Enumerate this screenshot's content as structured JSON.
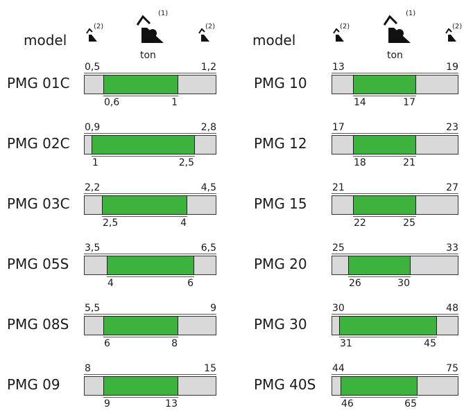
{
  "header": {
    "model_label": "model",
    "unit_label": "ton",
    "left_icon_note": "(2)",
    "center_icon_note": "(1)",
    "right_icon_note": "(2)",
    "left_icon": "crane-small-icon",
    "center_icon": "crane-large-icon",
    "right_icon": "crane-small-icon"
  },
  "colors": {
    "fill": "#3cb33c",
    "track": "#d9d9d9"
  },
  "columns": [
    {
      "rows": [
        {
          "model": "PMG 01C",
          "min": "0,5",
          "max": "1,2",
          "low": "0,6",
          "high": "1",
          "range": [
            0.5,
            1.2
          ],
          "band": [
            0.6,
            1
          ]
        },
        {
          "model": "PMG 02C",
          "min": "0,9",
          "max": "2,8",
          "low": "1",
          "high": "2,5",
          "range": [
            0.9,
            2.8
          ],
          "band": [
            1,
            2.5
          ]
        },
        {
          "model": "PMG 03C",
          "min": "2,2",
          "max": "4,5",
          "low": "2,5",
          "high": "4",
          "range": [
            2.2,
            4.5
          ],
          "band": [
            2.5,
            4
          ]
        },
        {
          "model": "PMG 05S",
          "min": "3,5",
          "max": "6,5",
          "low": "4",
          "high": "6",
          "range": [
            3.5,
            6.5
          ],
          "band": [
            4,
            6
          ]
        },
        {
          "model": "PMG 08S",
          "min": "5,5",
          "max": "9",
          "low": "6",
          "high": "8",
          "range": [
            5.5,
            9
          ],
          "band": [
            6,
            8
          ]
        },
        {
          "model": "PMG 09",
          "min": "8",
          "max": "15",
          "low": "9",
          "high": "13",
          "range": [
            8,
            15
          ],
          "band": [
            9,
            13
          ]
        }
      ]
    },
    {
      "rows": [
        {
          "model": "PMG 10",
          "min": "13",
          "max": "19",
          "low": "14",
          "high": "17",
          "range": [
            13,
            19
          ],
          "band": [
            14,
            17
          ]
        },
        {
          "model": "PMG 12",
          "min": "17",
          "max": "23",
          "low": "18",
          "high": "21",
          "range": [
            17,
            23
          ],
          "band": [
            18,
            21
          ]
        },
        {
          "model": "PMG 15",
          "min": "21",
          "max": "27",
          "low": "22",
          "high": "25",
          "range": [
            21,
            27
          ],
          "band": [
            22,
            25
          ]
        },
        {
          "model": "PMG 20",
          "min": "25",
          "max": "33",
          "low": "26",
          "high": "30",
          "range": [
            25,
            33
          ],
          "band": [
            26,
            30
          ]
        },
        {
          "model": "PMG 30",
          "min": "30",
          "max": "48",
          "low": "31",
          "high": "45",
          "range": [
            30,
            48
          ],
          "band": [
            31,
            45
          ]
        },
        {
          "model": "PMG 40S",
          "min": "44",
          "max": "75",
          "low": "46",
          "high": "65",
          "range": [
            44,
            75
          ],
          "band": [
            46,
            65
          ]
        }
      ]
    }
  ]
}
